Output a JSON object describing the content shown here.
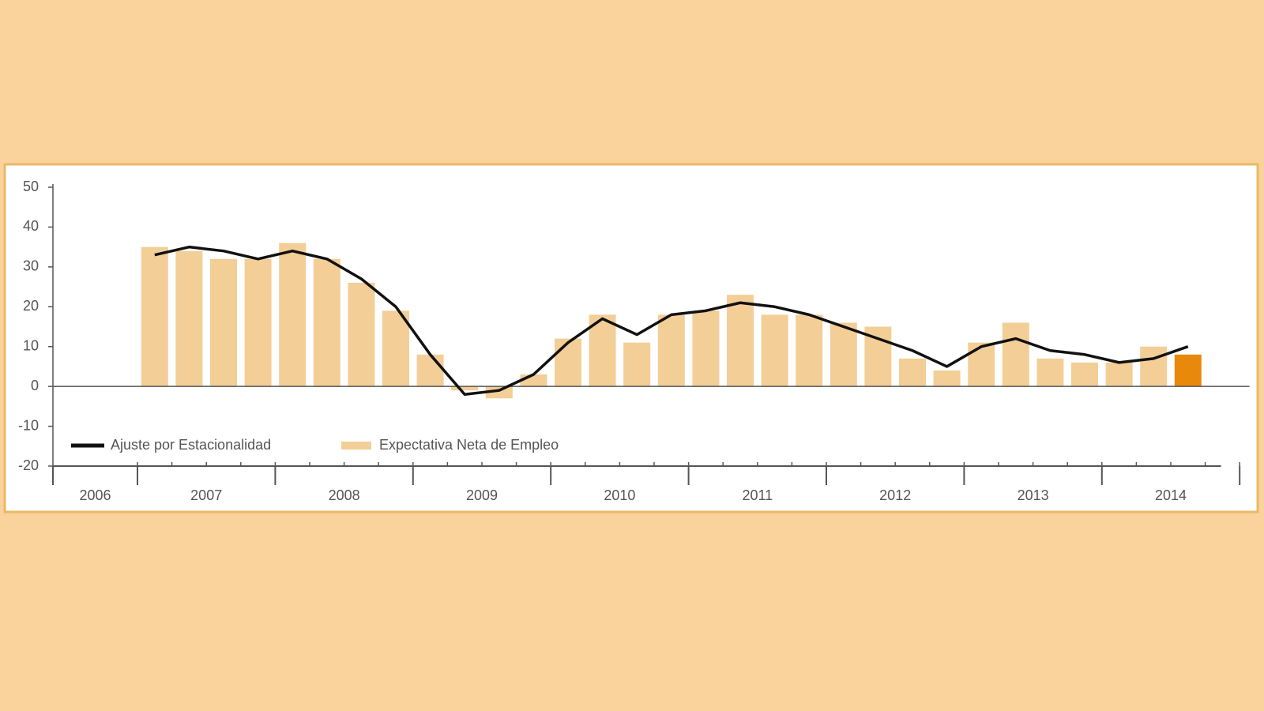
{
  "chart_data": {
    "type": "bar-line",
    "years": [
      "2006",
      "2007",
      "2008",
      "2009",
      "2010",
      "2011",
      "2012",
      "2013",
      "2014"
    ],
    "series": [
      {
        "name": "Expectativa Neta de Empleo",
        "type": "bar",
        "color": "#f4ce97",
        "colors": [
          "#f4ce97",
          "#f4ce97",
          "#f4ce97",
          "#f4ce97",
          "#f4ce97",
          "#f4ce97",
          "#f4ce97",
          "#f4ce97",
          "#f4ce97",
          "#f4ce97",
          "#f4ce97",
          "#f4ce97",
          "#f4ce97",
          "#f4ce97",
          "#f4ce97",
          "#f4ce97",
          "#f4ce97",
          "#f4ce97",
          "#f4ce97",
          "#f4ce97",
          "#f4ce97",
          "#f4ce97",
          "#f4ce97",
          "#f4ce97",
          "#f4ce97",
          "#f4ce97",
          "#f4ce97",
          "#f4ce97",
          "#f4ce97",
          "#f4ce97",
          "#e8890c"
        ],
        "values": [
          35,
          34,
          32,
          32,
          36,
          32,
          26,
          19,
          8,
          -1,
          -3,
          3,
          12,
          18,
          11,
          18,
          19,
          23,
          18,
          18,
          16,
          15,
          7,
          4,
          11,
          16,
          7,
          6,
          6,
          10,
          8
        ]
      },
      {
        "name": "Ajuste por Estacionalidad",
        "type": "line",
        "color": "#111111",
        "values": [
          33,
          35,
          34,
          32,
          34,
          32,
          27,
          20,
          8,
          -2,
          -1,
          3,
          11,
          17,
          13,
          18,
          19,
          21,
          20,
          18,
          15,
          12,
          9,
          5,
          10,
          12,
          9,
          8,
          6,
          7,
          10
        ]
      }
    ],
    "ylim": [
      -20,
      50
    ],
    "yticks": [
      -20,
      -10,
      0,
      10,
      20,
      30,
      40,
      50
    ]
  }
}
